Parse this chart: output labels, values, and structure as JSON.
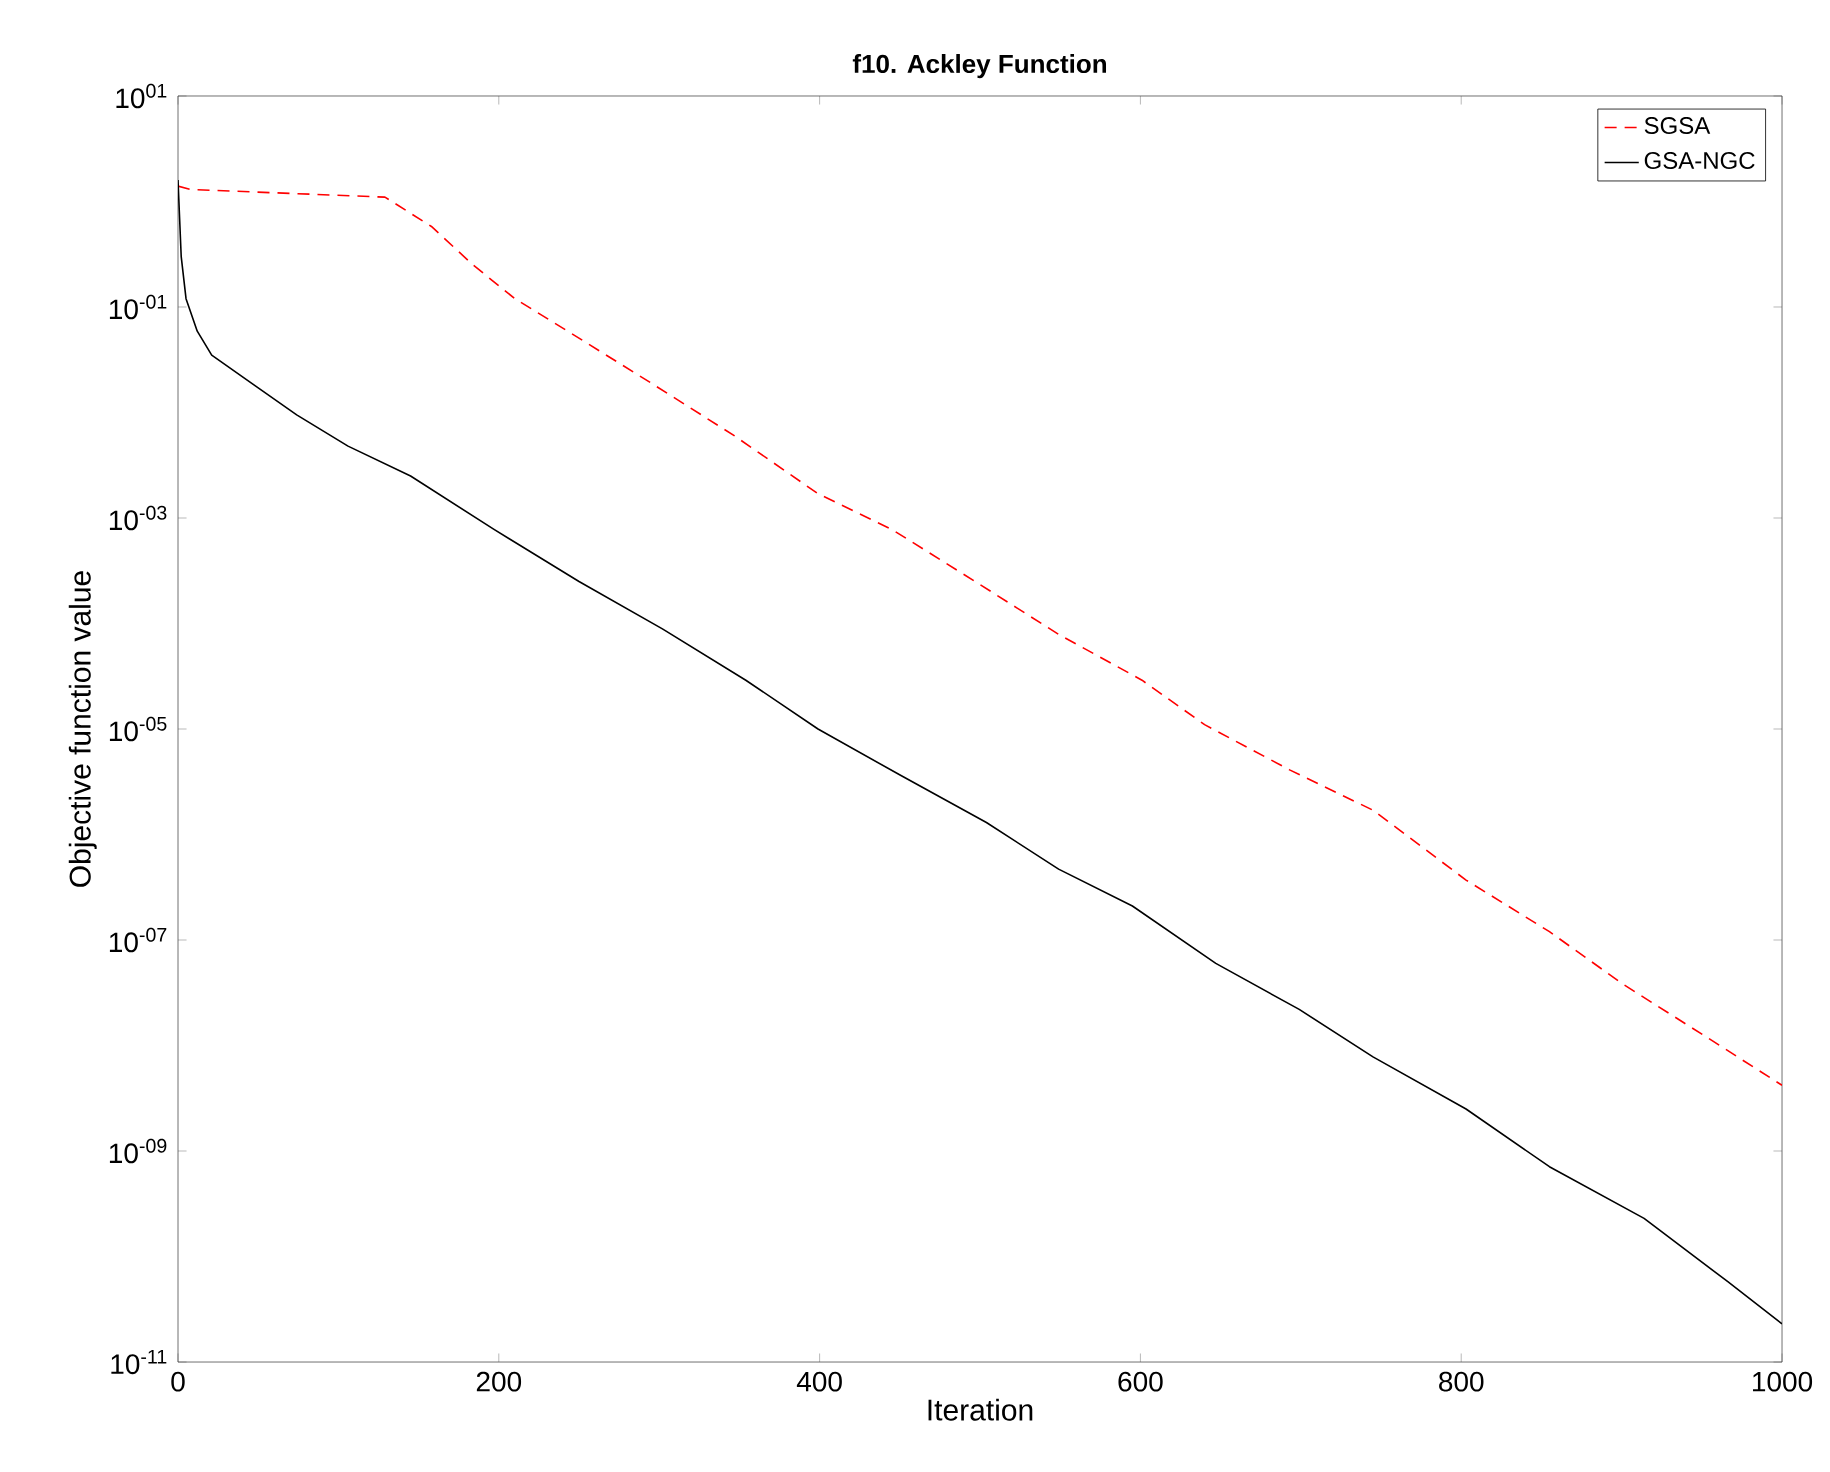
{
  "chart_data": {
    "type": "line",
    "title": "f10. Ackley Function",
    "xlabel": "Iteration",
    "ylabel": "Objective function value",
    "log": "y",
    "grid": false,
    "legend": "top right",
    "marker": "none",
    "xlim": [
      0,
      1000
    ],
    "xticks": [
      0,
      200,
      400,
      600,
      800,
      1000
    ],
    "ylim": [
      1e-11,
      10
    ],
    "yticks": [
      {
        "value": 10,
        "label": "10$^{01}$"
      },
      {
        "value": 0.1,
        "label": "10$^{-01}$"
      },
      {
        "value": 0.001,
        "label": "10$^{-03}$"
      },
      {
        "value": 1e-05,
        "label": "10$^{-05}$"
      },
      {
        "value": 1e-07,
        "label": "10$^{-07}$"
      },
      {
        "value": 1e-09,
        "label": "10$^{-09}$"
      },
      {
        "value": 1e-11,
        "label": "10$^{-11}$"
      }
    ],
    "series": [
      {
        "name": "SGSA",
        "color": "#ff0000",
        "line_style": "dashed",
        "x": [
          0,
          8,
          129,
          158,
          184,
          210,
          243,
          295,
          347,
          399,
          445,
          497,
          549,
          601,
          640,
          693,
          745,
          803,
          855,
          901,
          953,
          1000
        ],
        "values": [
          1.4,
          1.3,
          1.1,
          0.58,
          0.25,
          0.12,
          0.059,
          0.019,
          0.006,
          0.0017,
          0.00078,
          0.00025,
          7.9e-05,
          2.9e-05,
          1.1e-05,
          4.1e-06,
          1.7e-06,
          3.7e-07,
          1.2e-07,
          3.8e-08,
          1.2e-08,
          4.2e-09
        ]
      },
      {
        "name": "GSA-NGC",
        "color": "#000000",
        "line_style": "solid",
        "x": [
          0,
          2,
          5,
          12,
          21,
          48,
          74,
          106,
          145,
          197,
          250,
          302,
          354,
          399,
          451,
          504,
          549,
          595,
          647,
          699,
          745,
          803,
          855,
          914,
          966,
          1000
        ],
        "values": [
          1.6,
          0.3,
          0.12,
          0.059,
          0.035,
          0.018,
          0.0095,
          0.0048,
          0.0025,
          0.00078,
          0.00025,
          8.9e-05,
          2.9e-05,
          1e-05,
          3.6e-06,
          1.3e-06,
          4.7e-07,
          2.1e-07,
          6e-08,
          2.2e-08,
          7.8e-09,
          2.5e-09,
          7.1e-10,
          2.3e-10,
          5.8e-11,
          2.3e-11
        ]
      }
    ]
  }
}
